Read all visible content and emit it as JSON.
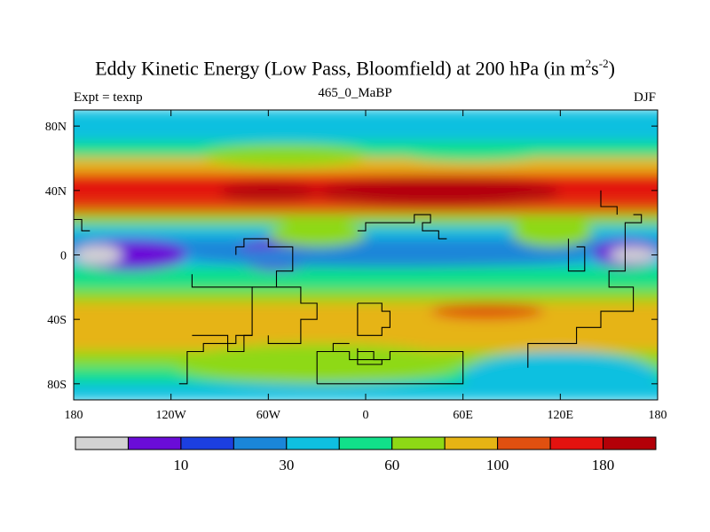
{
  "header": {
    "title_main": "Eddy Kinetic Energy (Low Pass, Bloomfield) at 200 hPa (in m",
    "title_sup1": "2",
    "title_mid": "s",
    "title_sup2": "-2",
    "title_end": ")",
    "left_subtitle": "Expt = texnp",
    "center_subtitle": "465_0_MaBP",
    "right_subtitle": "DJF"
  },
  "chart_data": {
    "type": "heatmap",
    "title": "Eddy Kinetic Energy (Low Pass, Bloomfield) at 200 hPa (in m^2 s^-2)",
    "experiment": "Expt = texnp",
    "case": "465_0_MaBP",
    "season": "DJF",
    "x_range": [
      -180,
      180
    ],
    "y_range": [
      -90,
      90
    ],
    "x_ticks": [
      -180,
      -120,
      -60,
      0,
      60,
      120,
      180
    ],
    "x_tick_labels": [
      "180",
      "120W",
      "60W",
      "0",
      "60E",
      "120E",
      "180"
    ],
    "y_ticks": [
      80,
      40,
      0,
      -40,
      -80
    ],
    "y_tick_labels": [
      "80N",
      "40N",
      "0",
      "40S",
      "80S"
    ],
    "colorbar": {
      "levels": [
        0,
        10,
        20,
        30,
        45,
        60,
        80,
        100,
        120,
        150,
        180,
        210
      ],
      "colors": [
        "#d3d3d3",
        "#6a0cd8",
        "#1c3fe0",
        "#1a86d9",
        "#0fc0e0",
        "#11e08a",
        "#8ed915",
        "#e6b414",
        "#e05010",
        "#e3120f",
        "#b30008"
      ],
      "labels": [
        {
          "index": 1,
          "text": "10"
        },
        {
          "index": 3,
          "text": "30"
        },
        {
          "index": 5,
          "text": "60"
        },
        {
          "index": 7,
          "text": "100"
        },
        {
          "index": 9,
          "text": "180"
        }
      ]
    },
    "band_profile": [
      {
        "lat": 90,
        "value": 55
      },
      {
        "lat": 80,
        "value": 50
      },
      {
        "lat": 70,
        "value": 60
      },
      {
        "lat": 60,
        "value": 85
      },
      {
        "lat": 50,
        "value": 130
      },
      {
        "lat": 40,
        "value": 170
      },
      {
        "lat": 32,
        "value": 160
      },
      {
        "lat": 25,
        "value": 95
      },
      {
        "lat": 18,
        "value": 70
      },
      {
        "lat": 10,
        "value": 45
      },
      {
        "lat": 0,
        "value": 40
      },
      {
        "lat": -8,
        "value": 60
      },
      {
        "lat": -15,
        "value": 70
      },
      {
        "lat": -22,
        "value": 80
      },
      {
        "lat": -30,
        "value": 100
      },
      {
        "lat": -40,
        "value": 115
      },
      {
        "lat": -50,
        "value": 110
      },
      {
        "lat": -60,
        "value": 95
      },
      {
        "lat": -70,
        "value": 70
      },
      {
        "lat": -80,
        "value": 55
      },
      {
        "lat": -90,
        "value": 50
      }
    ],
    "features": [
      {
        "lon_min": -30,
        "lon_max": 120,
        "lat_min": 30,
        "lat_max": 48,
        "value": 200
      },
      {
        "lon_min": -90,
        "lon_max": -30,
        "lat_min": 33,
        "lat_max": 45,
        "value": 190
      },
      {
        "lon_min": -180,
        "lon_max": -110,
        "lat_min": -10,
        "lat_max": 10,
        "value": 12
      },
      {
        "lon_min": -180,
        "lon_max": -150,
        "lat_min": -6,
        "lat_max": 6,
        "value": 5
      },
      {
        "lon_min": -80,
        "lon_max": -30,
        "lat_min": -10,
        "lat_max": 10,
        "value": 12
      },
      {
        "lon_min": -60,
        "lon_max": -45,
        "lat_min": -4,
        "lat_max": 3,
        "value": 5
      },
      {
        "lon_min": 140,
        "lon_max": 180,
        "lat_min": -8,
        "lat_max": 10,
        "value": 12
      },
      {
        "lon_min": 150,
        "lon_max": 180,
        "lat_min": -5,
        "lat_max": 5,
        "value": 5
      },
      {
        "lon_min": -110,
        "lon_max": 140,
        "lat_min": -8,
        "lat_max": 5,
        "value": 40
      },
      {
        "lon_min": 40,
        "lon_max": 110,
        "lat_min": -40,
        "lat_max": -30,
        "value": 130
      },
      {
        "lon_min": -120,
        "lon_max": 60,
        "lat_min": -80,
        "lat_max": -55,
        "value": 90
      },
      {
        "lon_min": 60,
        "lon_max": 180,
        "lat_min": -90,
        "lat_max": -60,
        "value": 55
      },
      {
        "lon_min": -100,
        "lon_max": 0,
        "lat_min": 55,
        "lat_max": 68,
        "value": 90
      },
      {
        "lon_min": 20,
        "lon_max": 110,
        "lat_min": 58,
        "lat_max": 68,
        "value": 75
      },
      {
        "lon_min": 90,
        "lon_max": 140,
        "lat_min": 5,
        "lat_max": 22,
        "value": 95
      },
      {
        "lon_min": -60,
        "lon_max": 0,
        "lat_min": 5,
        "lat_max": 20,
        "value": 85
      }
    ],
    "landmask_outline": [
      [
        [
          -107,
          -12
        ],
        [
          -107,
          -20
        ],
        [
          -70,
          -20
        ],
        [
          -70,
          -50
        ],
        [
          -80,
          -50
        ],
        [
          -80,
          -55
        ],
        [
          -100,
          -55
        ],
        [
          -100,
          -60
        ],
        [
          -110,
          -60
        ],
        [
          -110,
          -80
        ],
        [
          -115,
          -80
        ]
      ],
      [
        [
          -107,
          -50
        ],
        [
          -85,
          -50
        ],
        [
          -85,
          -60
        ],
        [
          -75,
          -60
        ],
        [
          -75,
          -50
        ],
        [
          -70,
          -50
        ]
      ],
      [
        [
          -70,
          -20
        ],
        [
          -55,
          -20
        ],
        [
          -55,
          -10
        ],
        [
          -45,
          -10
        ],
        [
          -45,
          5
        ],
        [
          -60,
          5
        ],
        [
          -60,
          10
        ],
        [
          -75,
          10
        ],
        [
          -75,
          5
        ],
        [
          -80,
          5
        ],
        [
          -80,
          0
        ]
      ],
      [
        [
          -55,
          -20
        ],
        [
          -40,
          -20
        ],
        [
          -40,
          -30
        ],
        [
          -30,
          -30
        ],
        [
          -30,
          -40
        ],
        [
          -40,
          -40
        ],
        [
          -40,
          -55
        ],
        [
          -60,
          -55
        ],
        [
          -60,
          -50
        ]
      ],
      [
        [
          -5,
          -58
        ],
        [
          -5,
          -68
        ],
        [
          10,
          -68
        ],
        [
          10,
          -65
        ],
        [
          5,
          -65
        ],
        [
          5,
          -60
        ],
        [
          -5,
          -60
        ]
      ],
      [
        [
          -5,
          15
        ],
        [
          0,
          15
        ],
        [
          0,
          20
        ],
        [
          30,
          20
        ],
        [
          30,
          25
        ],
        [
          40,
          25
        ],
        [
          40,
          20
        ],
        [
          35,
          20
        ],
        [
          35,
          15
        ],
        [
          45,
          15
        ],
        [
          45,
          10
        ],
        [
          50,
          10
        ]
      ],
      [
        [
          -5,
          -30
        ],
        [
          -5,
          -50
        ],
        [
          10,
          -50
        ],
        [
          10,
          -45
        ],
        [
          15,
          -45
        ],
        [
          15,
          -35
        ],
        [
          10,
          -35
        ],
        [
          10,
          -30
        ],
        [
          -5,
          -30
        ]
      ],
      [
        [
          100,
          -70
        ],
        [
          100,
          -55
        ],
        [
          130,
          -55
        ],
        [
          130,
          -45
        ],
        [
          145,
          -45
        ],
        [
          145,
          -35
        ],
        [
          165,
          -35
        ],
        [
          165,
          -20
        ],
        [
          150,
          -20
        ],
        [
          150,
          -10
        ],
        [
          160,
          -10
        ],
        [
          160,
          20
        ],
        [
          170,
          20
        ],
        [
          170,
          25
        ],
        [
          165,
          25
        ]
      ],
      [
        [
          125,
          10
        ],
        [
          125,
          -10
        ],
        [
          135,
          -10
        ],
        [
          135,
          5
        ],
        [
          130,
          5
        ]
      ],
      [
        [
          -30,
          -80
        ],
        [
          -30,
          -60
        ],
        [
          -10,
          -60
        ],
        [
          -10,
          -65
        ],
        [
          15,
          -65
        ],
        [
          15,
          -60
        ],
        [
          60,
          -60
        ],
        [
          60,
          -80
        ],
        [
          -30,
          -80
        ]
      ],
      [
        [
          -180,
          22
        ],
        [
          -175,
          22
        ],
        [
          -175,
          15
        ],
        [
          -170,
          15
        ]
      ],
      [
        [
          -10,
          -55
        ],
        [
          -20,
          -55
        ],
        [
          -20,
          -60
        ]
      ],
      [
        [
          145,
          40
        ],
        [
          145,
          30
        ],
        [
          155,
          30
        ],
        [
          155,
          25
        ]
      ]
    ]
  }
}
